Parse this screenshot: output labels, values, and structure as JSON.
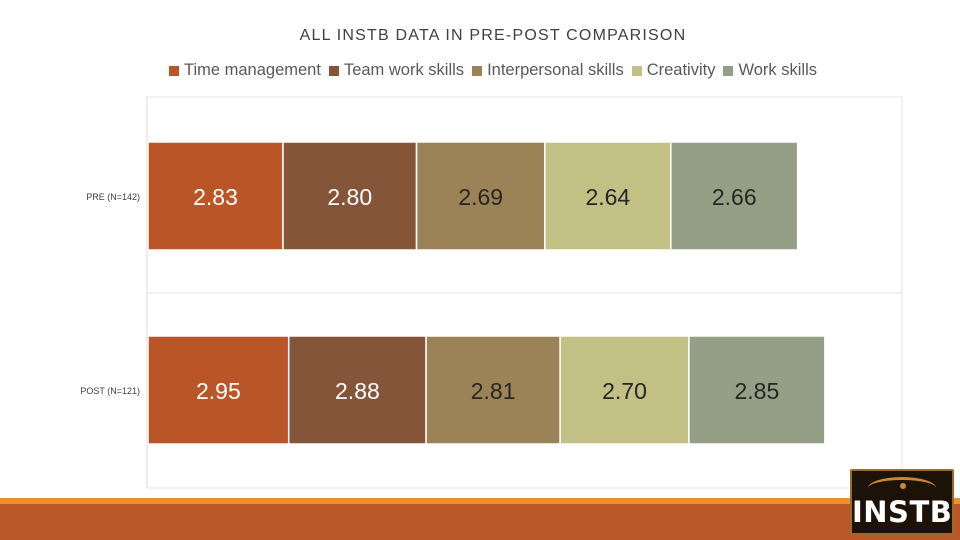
{
  "chart_data": {
    "type": "bar",
    "orientation": "horizontal",
    "stacked": true,
    "title": "ALL INSTB DATA IN PRE-POST COMPARISON",
    "categories": [
      "PRE (N=142)",
      "POST (N=121)"
    ],
    "series": [
      {
        "name": "Time management",
        "color": "#b95527",
        "values": [
          2.83,
          2.95
        ]
      },
      {
        "name": "Team work skills",
        "color": "#85553a",
        "values": [
          2.8,
          2.88
        ]
      },
      {
        "name": "Interpersonal skills",
        "color": "#9c8357",
        "values": [
          2.69,
          2.81
        ]
      },
      {
        "name": "Creativity",
        "color": "#c3c085",
        "values": [
          2.64,
          2.7
        ]
      },
      {
        "name": "Work skills",
        "color": "#949f85",
        "values": [
          2.66,
          2.85
        ]
      }
    ],
    "data_labels": [
      [
        "2.83",
        "2.80",
        "2.69",
        "2.64",
        "2.66"
      ],
      [
        "2.95",
        "2.88",
        "2.81",
        "2.70",
        "2.85"
      ]
    ],
    "legend_position": "top",
    "grid": true
  },
  "logo": {
    "text": "INSTB"
  }
}
